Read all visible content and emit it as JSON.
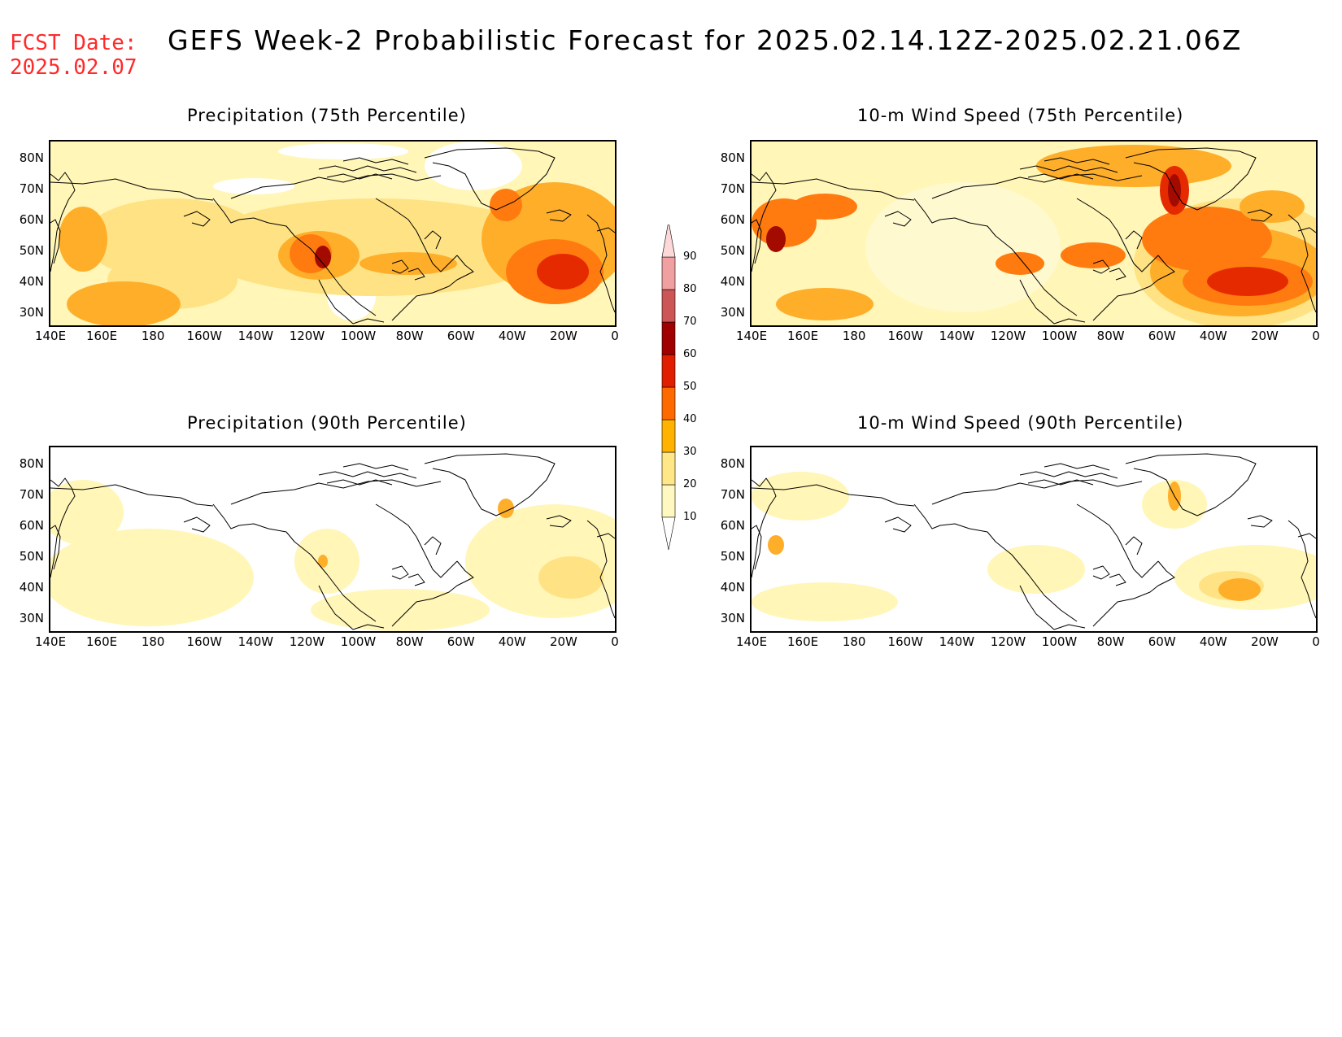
{
  "header": {
    "fcst_label": "FCST Date:",
    "fcst_date": "2025.02.07",
    "title": "GEFS Week-2 Probabilistic Forecast for 2025.02.14.12Z-2025.02.21.06Z"
  },
  "panels": [
    {
      "id": "precip75",
      "title": "Precipitation (75th Percentile)"
    },
    {
      "id": "wind75",
      "title": "10-m Wind Speed (75th Percentile)"
    },
    {
      "id": "precip90",
      "title": "Precipitation (90th Percentile)"
    },
    {
      "id": "wind90",
      "title": "10-m Wind Speed (90th Percentile)"
    }
  ],
  "axes": {
    "lat_labels": [
      "80N",
      "70N",
      "60N",
      "50N",
      "40N",
      "30N"
    ],
    "lon_labels": [
      "140E",
      "160E",
      "180",
      "160W",
      "140W",
      "120W",
      "100W",
      "80W",
      "60W",
      "40W",
      "20W",
      "0"
    ]
  },
  "colorbar": {
    "levels": [
      "10",
      "20",
      "30",
      "40",
      "50",
      "60",
      "70",
      "80",
      "90"
    ],
    "colors": [
      "#fff8c0",
      "#ffe788",
      "#ffb300",
      "#ff6a00",
      "#e01e00",
      "#a00000",
      "#cc5555",
      "#f0a0a0",
      "#fcd8d8"
    ]
  },
  "colors": {
    "level1": "#fff6b8",
    "level2": "#ffe283",
    "level3": "#ffae2a",
    "level4": "#ff7b10",
    "level5": "#e62a00",
    "level6": "#a30a00",
    "text_red": "#ff2a2a"
  }
}
